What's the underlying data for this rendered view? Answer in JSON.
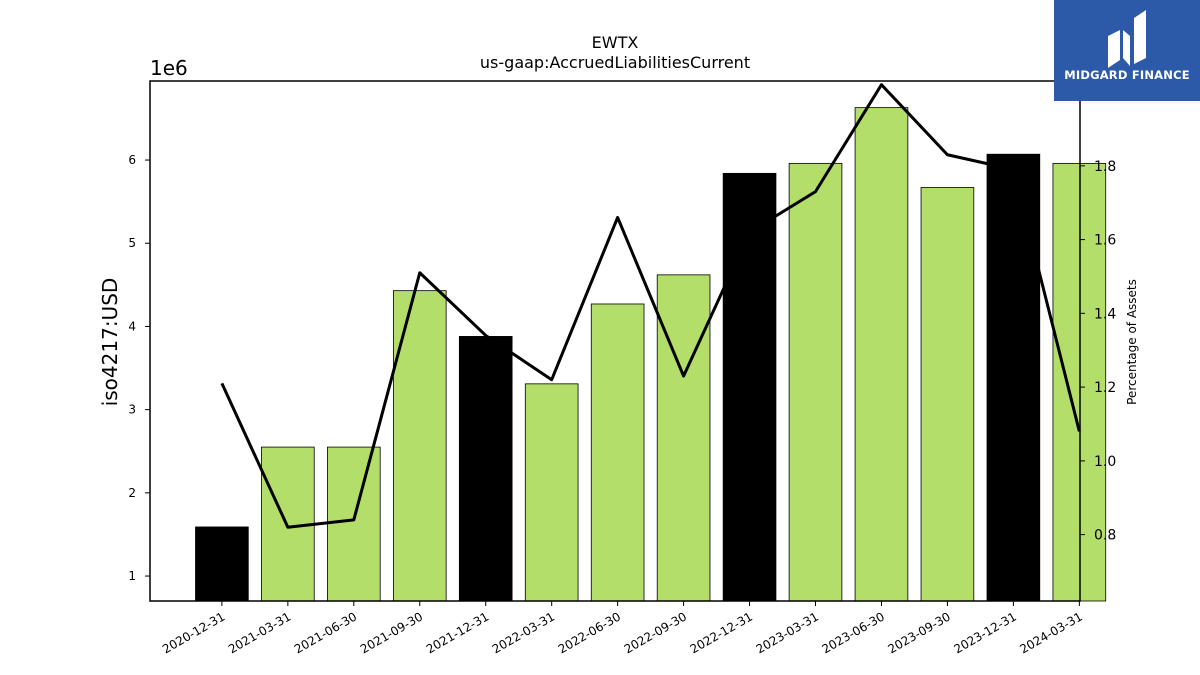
{
  "chart_data": {
    "type": "bar",
    "title": "EWTX",
    "subtitle": "us-gaap:AccruedLiabilitiesCurrent",
    "ylabel": "iso4217:USD",
    "y2label": "Percentage of Assets",
    "yscale_label": "1e6",
    "categories": [
      "2020-12-31",
      "2021-03-31",
      "2021-06-30",
      "2021-09-30",
      "2021-12-31",
      "2022-03-31",
      "2022-06-30",
      "2022-09-30",
      "2022-12-31",
      "2023-03-31",
      "2023-06-30",
      "2023-09-30",
      "2023-12-31",
      "2024-03-31"
    ],
    "values": [
      1.59,
      2.55,
      2.55,
      4.43,
      3.88,
      3.31,
      4.27,
      4.62,
      5.84,
      5.96,
      6.63,
      5.67,
      6.07,
      5.96
    ],
    "bar_colors": [
      "#000000",
      "#b3de69",
      "#b3de69",
      "#b3de69",
      "#000000",
      "#b3de69",
      "#b3de69",
      "#b3de69",
      "#000000",
      "#b3de69",
      "#b3de69",
      "#b3de69",
      "#000000",
      "#b3de69"
    ],
    "line_values": [
      1.21,
      0.82,
      0.84,
      1.51,
      1.34,
      1.22,
      1.66,
      1.23,
      1.62,
      1.73,
      2.02,
      1.83,
      1.79,
      1.08
    ],
    "ylim": [
      0.7,
      6.95
    ],
    "y_ticks": [
      1,
      2,
      3,
      4,
      5,
      6
    ],
    "y2lim": [
      0.62,
      2.03
    ],
    "y2_ticks": [
      "0.8",
      "1.0",
      "1.2",
      "1.4",
      "1.6",
      "1.8"
    ],
    "colors": {
      "accent": "#b3de69",
      "highlight": "#000000",
      "line": "#000000"
    }
  },
  "logo": {
    "text": "MIDGARD FINANCE",
    "background": "#2d5aa8"
  }
}
